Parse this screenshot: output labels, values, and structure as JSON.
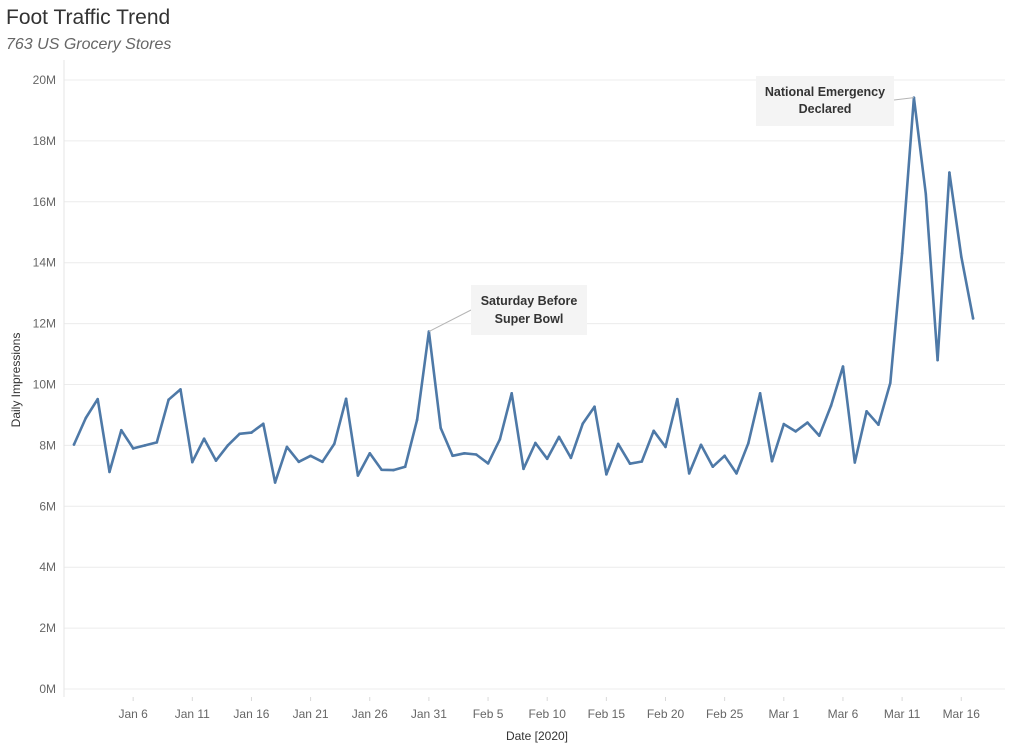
{
  "title": "Foot Traffic Trend",
  "subtitle": "763 US Grocery Stores",
  "chart_data": {
    "type": "line",
    "xlabel": "Date [2020]",
    "ylabel": "Daily Impressions",
    "ylim": [
      0,
      20000000
    ],
    "y_ticks": [
      0,
      2000000,
      4000000,
      6000000,
      8000000,
      10000000,
      12000000,
      14000000,
      16000000,
      18000000,
      20000000
    ],
    "y_tick_labels": [
      "0M",
      "2M",
      "4M",
      "6M",
      "8M",
      "10M",
      "12M",
      "14M",
      "16M",
      "18M",
      "20M"
    ],
    "x_tick_labels": [
      "Jan 6",
      "Jan 11",
      "Jan 16",
      "Jan 21",
      "Jan 26",
      "Jan 31",
      "Feb 5",
      "Feb 10",
      "Feb 15",
      "Feb 20",
      "Feb 25",
      "Mar 1",
      "Mar 6",
      "Mar 11",
      "Mar 16"
    ],
    "x_start": "Jan 1",
    "x_end": "Mar 18",
    "grid": "horizontal",
    "color": "#4e79a7",
    "series": [
      {
        "values": [
          8030000,
          8900000,
          9520000,
          7130000,
          8500000,
          7900000,
          8000000,
          8100000,
          9500000,
          9840000,
          7450000,
          8220000,
          7500000,
          8000000,
          8380000,
          8420000,
          8710000,
          6780000,
          7950000,
          7460000,
          7660000,
          7460000,
          8050000,
          9530000,
          7010000,
          7740000,
          7200000,
          7190000,
          7300000,
          8840000,
          11740000,
          8570000,
          7660000,
          7740000,
          7700000,
          7410000,
          8200000,
          9710000,
          7230000,
          8080000,
          7560000,
          8280000,
          7590000,
          8710000,
          9270000,
          7050000,
          8050000,
          7400000,
          7470000,
          8480000,
          7950000,
          9520000,
          7080000,
          8020000,
          7300000,
          7660000,
          7080000,
          8070000,
          9710000,
          7480000,
          8700000,
          8460000,
          8750000,
          8320000,
          9310000,
          10590000,
          7440000,
          9120000,
          8680000,
          10050000,
          14310000,
          19420000,
          16260000,
          10800000,
          16960000,
          14200000,
          12170000
        ]
      }
    ],
    "annotations": [
      {
        "line1": "Saturday Before",
        "line2": "Super Bowl",
        "point_index": 30
      },
      {
        "line1": "National Emergency",
        "line2": "Declared",
        "point_index": 71
      }
    ]
  }
}
